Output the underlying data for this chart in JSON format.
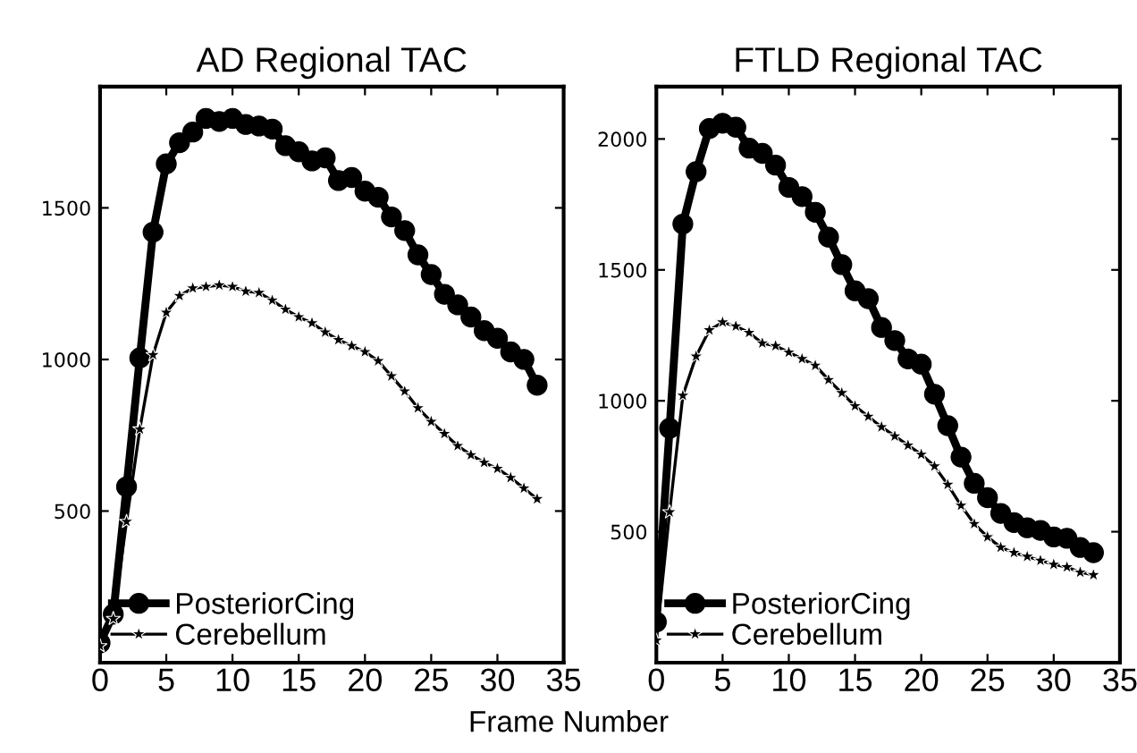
{
  "chart_data": [
    {
      "type": "line",
      "title": "AD Regional TAC",
      "xlabel": "Frame Number",
      "xlim": [
        0,
        35
      ],
      "xticks": [
        0,
        5,
        10,
        15,
        20,
        25,
        30,
        35
      ],
      "ylim": [
        0,
        1900
      ],
      "yticks": [
        500,
        1000,
        1500
      ],
      "legend": "bottom left",
      "grid": false,
      "x": [
        0,
        1,
        2,
        3,
        4,
        5,
        6,
        7,
        8,
        9,
        10,
        11,
        12,
        13,
        14,
        15,
        16,
        17,
        18,
        19,
        20,
        21,
        22,
        23,
        24,
        25,
        26,
        27,
        28,
        29,
        30,
        31,
        32,
        33
      ],
      "series": [
        {
          "name": "PosteriorCing",
          "color": "#000000",
          "marker": "circle",
          "values": [
            65,
            160,
            580,
            1005,
            1420,
            1645,
            1715,
            1750,
            1795,
            1785,
            1795,
            1775,
            1770,
            1760,
            1705,
            1685,
            1655,
            1665,
            1590,
            1600,
            1555,
            1535,
            1470,
            1425,
            1345,
            1280,
            1215,
            1180,
            1140,
            1095,
            1070,
            1025,
            1000,
            915
          ]
        },
        {
          "name": "Cerebellum",
          "color": "#000000",
          "marker": "star",
          "values": [
            55,
            145,
            465,
            770,
            1015,
            1155,
            1210,
            1235,
            1240,
            1245,
            1240,
            1225,
            1220,
            1195,
            1165,
            1140,
            1120,
            1090,
            1065,
            1045,
            1025,
            995,
            945,
            895,
            840,
            795,
            755,
            715,
            685,
            660,
            640,
            610,
            575,
            540
          ]
        }
      ]
    },
    {
      "type": "line",
      "title": "FTLD Regional TAC",
      "xlim": [
        0,
        35
      ],
      "xticks": [
        0,
        5,
        10,
        15,
        20,
        25,
        30,
        35
      ],
      "ylim": [
        0,
        2200
      ],
      "yticks": [
        500,
        1000,
        1500,
        2000
      ],
      "legend": "bottom left",
      "grid": false,
      "x": [
        0,
        1,
        2,
        3,
        4,
        5,
        6,
        7,
        8,
        9,
        10,
        11,
        12,
        13,
        14,
        15,
        16,
        17,
        18,
        19,
        20,
        21,
        22,
        23,
        24,
        25,
        26,
        27,
        28,
        29,
        30,
        31,
        32,
        33
      ],
      "series": [
        {
          "name": "PosteriorCing",
          "color": "#000000",
          "marker": "circle",
          "values": [
            155,
            895,
            1675,
            1875,
            2040,
            2060,
            2045,
            1965,
            1945,
            1900,
            1815,
            1780,
            1720,
            1625,
            1520,
            1420,
            1390,
            1280,
            1230,
            1160,
            1140,
            1025,
            905,
            785,
            685,
            630,
            570,
            535,
            515,
            505,
            480,
            475,
            440,
            420
          ]
        },
        {
          "name": "Cerebellum",
          "color": "#000000",
          "marker": "star",
          "values": [
            85,
            575,
            1020,
            1170,
            1270,
            1300,
            1285,
            1260,
            1220,
            1210,
            1185,
            1160,
            1135,
            1080,
            1030,
            980,
            940,
            900,
            865,
            830,
            795,
            750,
            680,
            600,
            530,
            480,
            440,
            420,
            405,
            390,
            375,
            365,
            345,
            335
          ]
        }
      ]
    }
  ]
}
